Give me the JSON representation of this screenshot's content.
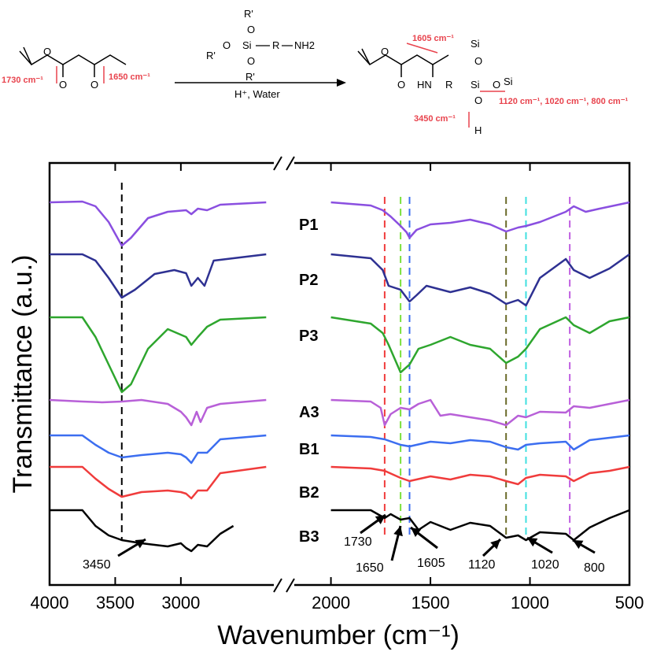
{
  "scheme": {
    "reagent_labels": [
      "R'",
      "O",
      "Si",
      "R",
      "NH2",
      "R'",
      "O",
      "O",
      "R'"
    ],
    "condition": "H⁺, Water",
    "reactant_annotations": [
      "1730 cm⁻¹",
      "1650 cm⁻¹"
    ],
    "product_annotations": [
      "1605 cm⁻¹",
      "3450 cm⁻¹",
      "1120 cm⁻¹, 1020 cm⁻¹, 800 cm⁻¹"
    ],
    "product_atoms": [
      "O",
      "O",
      "HN",
      "R",
      "Si",
      "O",
      "Si",
      "Si",
      "O",
      "O",
      "H"
    ],
    "reactant_atoms": [
      "O",
      "O",
      "O"
    ]
  },
  "chart_data": {
    "type": "line",
    "xlabel": "Wavenumber (cm⁻¹)",
    "ylabel": "Transmittance (a.u.)",
    "x_reversed": true,
    "axis_break": [
      2250,
      2200
    ],
    "x_ticks": [
      4000,
      3500,
      3000,
      2000,
      1500,
      1000,
      500
    ],
    "x_tick_labels": [
      "4000",
      "3500",
      "3000",
      "2000",
      "1500",
      "1000",
      "500"
    ],
    "grid": false,
    "series": [
      {
        "name": "P1",
        "color": "#8a4fe0",
        "baseline": 257,
        "points": [
          [
            4000,
            0
          ],
          [
            3750,
            -1
          ],
          [
            3650,
            5
          ],
          [
            3550,
            25
          ],
          [
            3450,
            55
          ],
          [
            3380,
            45
          ],
          [
            3250,
            20
          ],
          [
            3100,
            12
          ],
          [
            2960,
            10
          ],
          [
            2920,
            15
          ],
          [
            2870,
            8
          ],
          [
            2800,
            10
          ],
          [
            2700,
            3
          ],
          [
            2350,
            0
          ],
          [
            2000,
            0
          ],
          [
            1800,
            4
          ],
          [
            1740,
            10
          ],
          [
            1700,
            18
          ],
          [
            1650,
            30
          ],
          [
            1620,
            38
          ],
          [
            1605,
            45
          ],
          [
            1570,
            35
          ],
          [
            1500,
            28
          ],
          [
            1400,
            26
          ],
          [
            1300,
            22
          ],
          [
            1200,
            28
          ],
          [
            1120,
            37
          ],
          [
            1060,
            32
          ],
          [
            1020,
            30
          ],
          [
            950,
            25
          ],
          [
            820,
            12
          ],
          [
            780,
            5
          ],
          [
            720,
            12
          ],
          [
            650,
            8
          ],
          [
            500,
            0
          ]
        ]
      },
      {
        "name": "P2",
        "color": "#2e3192",
        "baseline": 323,
        "points": [
          [
            4000,
            0
          ],
          [
            3750,
            0
          ],
          [
            3650,
            8
          ],
          [
            3550,
            30
          ],
          [
            3450,
            55
          ],
          [
            3350,
            45
          ],
          [
            3200,
            25
          ],
          [
            3050,
            20
          ],
          [
            2960,
            24
          ],
          [
            2920,
            40
          ],
          [
            2870,
            30
          ],
          [
            2820,
            40
          ],
          [
            2750,
            8
          ],
          [
            2350,
            0
          ],
          [
            2000,
            0
          ],
          [
            1800,
            5
          ],
          [
            1740,
            20
          ],
          [
            1710,
            40
          ],
          [
            1650,
            45
          ],
          [
            1605,
            60
          ],
          [
            1570,
            52
          ],
          [
            1520,
            40
          ],
          [
            1400,
            48
          ],
          [
            1300,
            42
          ],
          [
            1200,
            50
          ],
          [
            1120,
            63
          ],
          [
            1060,
            58
          ],
          [
            1020,
            65
          ],
          [
            950,
            30
          ],
          [
            820,
            6
          ],
          [
            780,
            20
          ],
          [
            700,
            30
          ],
          [
            600,
            18
          ],
          [
            500,
            0
          ]
        ]
      },
      {
        "name": "P3",
        "color": "#2ea62e",
        "baseline": 403,
        "points": [
          [
            4000,
            0
          ],
          [
            3750,
            0
          ],
          [
            3650,
            25
          ],
          [
            3550,
            60
          ],
          [
            3450,
            95
          ],
          [
            3380,
            85
          ],
          [
            3250,
            40
          ],
          [
            3100,
            15
          ],
          [
            2960,
            25
          ],
          [
            2920,
            35
          ],
          [
            2870,
            25
          ],
          [
            2800,
            12
          ],
          [
            2700,
            3
          ],
          [
            2350,
            0
          ],
          [
            2000,
            0
          ],
          [
            1800,
            8
          ],
          [
            1740,
            20
          ],
          [
            1710,
            35
          ],
          [
            1650,
            70
          ],
          [
            1605,
            60
          ],
          [
            1560,
            40
          ],
          [
            1500,
            35
          ],
          [
            1400,
            25
          ],
          [
            1300,
            35
          ],
          [
            1200,
            40
          ],
          [
            1120,
            58
          ],
          [
            1060,
            50
          ],
          [
            1020,
            40
          ],
          [
            950,
            15
          ],
          [
            820,
            0
          ],
          [
            780,
            10
          ],
          [
            700,
            20
          ],
          [
            600,
            5
          ],
          [
            500,
            0
          ]
        ]
      },
      {
        "name": "A3",
        "color": "#b860d8",
        "baseline": 508,
        "points": [
          [
            4000,
            0
          ],
          [
            3750,
            2
          ],
          [
            3600,
            3
          ],
          [
            3450,
            2
          ],
          [
            3300,
            0
          ],
          [
            3100,
            5
          ],
          [
            3000,
            15
          ],
          [
            2960,
            22
          ],
          [
            2920,
            32
          ],
          [
            2880,
            15
          ],
          [
            2850,
            28
          ],
          [
            2800,
            10
          ],
          [
            2700,
            5
          ],
          [
            2350,
            0
          ],
          [
            2000,
            0
          ],
          [
            1800,
            2
          ],
          [
            1750,
            10
          ],
          [
            1730,
            32
          ],
          [
            1700,
            18
          ],
          [
            1650,
            10
          ],
          [
            1605,
            12
          ],
          [
            1560,
            5
          ],
          [
            1500,
            0
          ],
          [
            1450,
            20
          ],
          [
            1400,
            18
          ],
          [
            1300,
            22
          ],
          [
            1200,
            26
          ],
          [
            1120,
            32
          ],
          [
            1060,
            20
          ],
          [
            1020,
            22
          ],
          [
            950,
            15
          ],
          [
            820,
            16
          ],
          [
            780,
            8
          ],
          [
            700,
            10
          ],
          [
            600,
            5
          ],
          [
            500,
            0
          ]
        ]
      },
      {
        "name": "B1",
        "color": "#3c6ef0",
        "baseline": 553,
        "points": [
          [
            4000,
            0
          ],
          [
            3750,
            0
          ],
          [
            3650,
            12
          ],
          [
            3550,
            22
          ],
          [
            3450,
            28
          ],
          [
            3300,
            25
          ],
          [
            3100,
            22
          ],
          [
            3000,
            24
          ],
          [
            2960,
            28
          ],
          [
            2920,
            35
          ],
          [
            2870,
            22
          ],
          [
            2800,
            22
          ],
          [
            2700,
            5
          ],
          [
            2350,
            0
          ],
          [
            2000,
            0
          ],
          [
            1800,
            2
          ],
          [
            1730,
            5
          ],
          [
            1650,
            12
          ],
          [
            1605,
            14
          ],
          [
            1500,
            8
          ],
          [
            1400,
            10
          ],
          [
            1300,
            6
          ],
          [
            1200,
            8
          ],
          [
            1120,
            15
          ],
          [
            1060,
            18
          ],
          [
            1020,
            12
          ],
          [
            950,
            10
          ],
          [
            820,
            8
          ],
          [
            780,
            18
          ],
          [
            700,
            6
          ],
          [
            600,
            3
          ],
          [
            500,
            0
          ]
        ]
      },
      {
        "name": "B2",
        "color": "#f03c3c",
        "baseline": 593,
        "points": [
          [
            4000,
            0
          ],
          [
            3750,
            0
          ],
          [
            3650,
            15
          ],
          [
            3550,
            28
          ],
          [
            3450,
            38
          ],
          [
            3300,
            32
          ],
          [
            3100,
            30
          ],
          [
            3000,
            32
          ],
          [
            2960,
            34
          ],
          [
            2920,
            40
          ],
          [
            2870,
            30
          ],
          [
            2800,
            30
          ],
          [
            2700,
            8
          ],
          [
            2350,
            0
          ],
          [
            2000,
            0
          ],
          [
            1800,
            2
          ],
          [
            1730,
            5
          ],
          [
            1650,
            14
          ],
          [
            1605,
            18
          ],
          [
            1500,
            12
          ],
          [
            1400,
            16
          ],
          [
            1300,
            10
          ],
          [
            1200,
            12
          ],
          [
            1120,
            18
          ],
          [
            1060,
            22
          ],
          [
            1020,
            14
          ],
          [
            950,
            10
          ],
          [
            820,
            12
          ],
          [
            780,
            18
          ],
          [
            700,
            8
          ],
          [
            600,
            5
          ],
          [
            500,
            0
          ]
        ]
      },
      {
        "name": "B3",
        "color": "#000000",
        "baseline": 648,
        "points": [
          [
            4000,
            0
          ],
          [
            3750,
            0
          ],
          [
            3650,
            20
          ],
          [
            3550,
            32
          ],
          [
            3450,
            38
          ],
          [
            3300,
            42
          ],
          [
            3200,
            44
          ],
          [
            3100,
            46
          ],
          [
            3000,
            42
          ],
          [
            2960,
            48
          ],
          [
            2920,
            52
          ],
          [
            2870,
            44
          ],
          [
            2800,
            46
          ],
          [
            2700,
            30
          ],
          [
            2600,
            20
          ],
          [
            2000,
            0
          ],
          [
            1800,
            0
          ],
          [
            1730,
            10
          ],
          [
            1700,
            5
          ],
          [
            1650,
            12
          ],
          [
            1605,
            10
          ],
          [
            1560,
            25
          ],
          [
            1500,
            15
          ],
          [
            1400,
            25
          ],
          [
            1300,
            16
          ],
          [
            1200,
            20
          ],
          [
            1120,
            35
          ],
          [
            1060,
            32
          ],
          [
            1020,
            38
          ],
          [
            950,
            28
          ],
          [
            820,
            30
          ],
          [
            780,
            38
          ],
          [
            700,
            22
          ],
          [
            600,
            10
          ],
          [
            500,
            0
          ]
        ]
      }
    ],
    "peak_markers": [
      {
        "wavenumber": 3450,
        "color": "#000000",
        "label": "3450"
      },
      {
        "wavenumber": 1730,
        "color": "#f03c3c",
        "label": "1730"
      },
      {
        "wavenumber": 1650,
        "color": "#7ce03c",
        "label": "1650"
      },
      {
        "wavenumber": 1605,
        "color": "#3c6ef0",
        "label": "1605"
      },
      {
        "wavenumber": 1120,
        "color": "#6b6b2a",
        "label": "1120"
      },
      {
        "wavenumber": 1020,
        "color": "#40e0e0",
        "label": "1020"
      },
      {
        "wavenumber": 800,
        "color": "#c060e0",
        "label": "800"
      }
    ]
  }
}
